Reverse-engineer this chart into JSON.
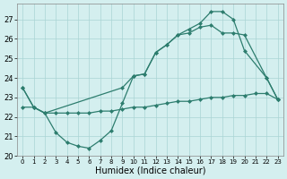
{
  "line1_x": [
    0,
    1,
    2,
    3,
    4,
    5,
    6,
    7,
    8,
    9,
    10,
    11,
    12,
    13,
    14,
    15,
    16,
    17,
    18,
    19,
    20,
    22,
    23
  ],
  "line1_y": [
    23.5,
    22.5,
    22.2,
    21.2,
    20.7,
    20.5,
    20.4,
    20.8,
    21.3,
    22.7,
    24.1,
    24.2,
    25.3,
    25.7,
    26.2,
    26.5,
    26.8,
    27.4,
    27.4,
    27.0,
    25.4,
    24.0,
    22.9
  ],
  "line2_x": [
    0,
    1,
    2,
    9,
    10,
    11,
    12,
    13,
    14,
    15,
    16,
    17,
    18,
    19,
    20,
    22,
    23
  ],
  "line2_y": [
    23.5,
    22.5,
    22.2,
    23.5,
    24.1,
    24.2,
    25.3,
    25.7,
    26.2,
    26.3,
    26.6,
    26.7,
    26.3,
    26.3,
    26.2,
    24.0,
    22.9
  ],
  "line3_x": [
    0,
    1,
    2,
    3,
    4,
    5,
    6,
    7,
    8,
    9,
    10,
    11,
    12,
    13,
    14,
    15,
    16,
    17,
    18,
    19,
    20,
    21,
    22,
    23
  ],
  "line3_y": [
    22.5,
    22.5,
    22.2,
    22.2,
    22.2,
    22.2,
    22.2,
    22.3,
    22.3,
    22.4,
    22.5,
    22.5,
    22.6,
    22.7,
    22.8,
    22.8,
    22.9,
    23.0,
    23.0,
    23.1,
    23.1,
    23.2,
    23.2,
    22.9
  ],
  "line_color": "#2d7d6e",
  "bg_color": "#d4efef",
  "grid_color": "#aad4d4",
  "xlabel": "Humidex (Indice chaleur)",
  "xlim": [
    -0.5,
    23.5
  ],
  "ylim": [
    20.0,
    27.8
  ],
  "yticks": [
    20,
    21,
    22,
    23,
    24,
    25,
    26,
    27
  ],
  "xticks": [
    0,
    1,
    2,
    3,
    4,
    5,
    6,
    7,
    8,
    9,
    10,
    11,
    12,
    13,
    14,
    15,
    16,
    17,
    18,
    19,
    20,
    21,
    22,
    23
  ],
  "marker": "D",
  "markersize": 2.0,
  "linewidth": 0.9
}
